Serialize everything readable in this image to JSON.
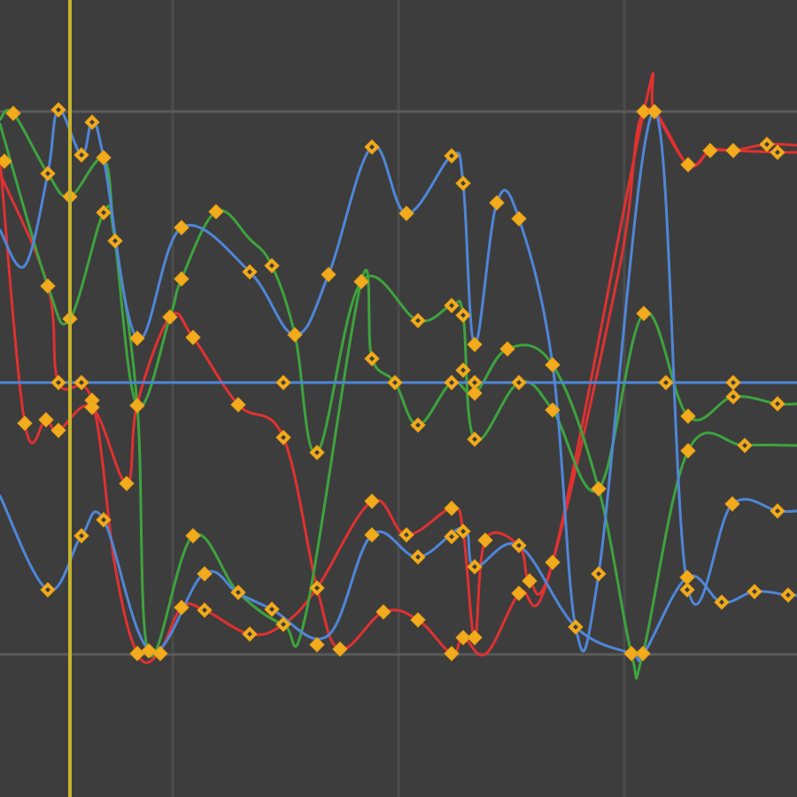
{
  "editor": {
    "background": "#3d3d3d",
    "grid_color": "#4b4b4b",
    "handle_color": "#f2ab1c",
    "playhead_color": "#c8b32c"
  },
  "curves": [
    {
      "name": "red-curve",
      "color": "#e03131"
    },
    {
      "name": "green-curve",
      "color": "#3ea33e"
    },
    {
      "name": "blue-curve",
      "color": "#4f86d8"
    }
  ]
}
